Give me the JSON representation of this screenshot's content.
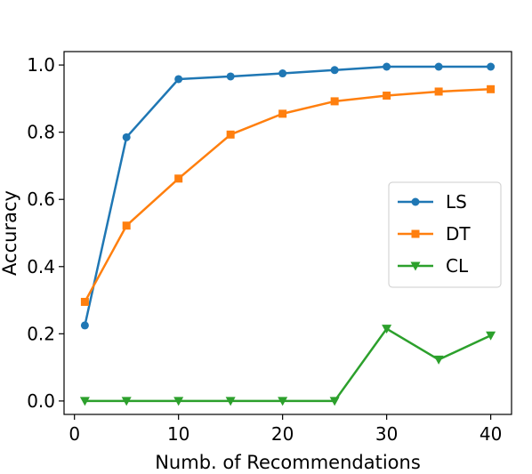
{
  "chart_data": {
    "type": "line",
    "title": "",
    "xlabel": "Numb. of Recommendations",
    "ylabel": "Accuracy",
    "xlim": [
      -1,
      42
    ],
    "ylim": [
      -0.04,
      1.04
    ],
    "xticks": [
      0,
      10,
      20,
      30,
      40
    ],
    "yticks": [
      0.0,
      0.2,
      0.4,
      0.6,
      0.8,
      1.0
    ],
    "xtick_labels": [
      "0",
      "10",
      "20",
      "30",
      "40"
    ],
    "ytick_labels": [
      "0.0",
      "0.2",
      "0.4",
      "0.6",
      "0.8",
      "1.0"
    ],
    "grid": false,
    "legend_position": "center-right",
    "x": [
      1,
      5,
      10,
      15,
      20,
      25,
      30,
      35,
      40
    ],
    "series": [
      {
        "name": "LS",
        "color": "#1f77b4",
        "marker": "circle",
        "values": [
          0.225,
          0.785,
          0.958,
          0.966,
          0.975,
          0.985,
          0.995,
          0.995,
          0.995
        ]
      },
      {
        "name": "DT",
        "color": "#ff7f0e",
        "marker": "square",
        "values": [
          0.295,
          0.522,
          0.662,
          0.793,
          0.855,
          0.892,
          0.909,
          0.921,
          0.928
        ]
      },
      {
        "name": "CL",
        "color": "#2ca02c",
        "marker": "triangle-down",
        "values": [
          0.0,
          0.0,
          0.0,
          0.0,
          0.0,
          0.0,
          0.215,
          0.123,
          0.195
        ]
      }
    ]
  }
}
